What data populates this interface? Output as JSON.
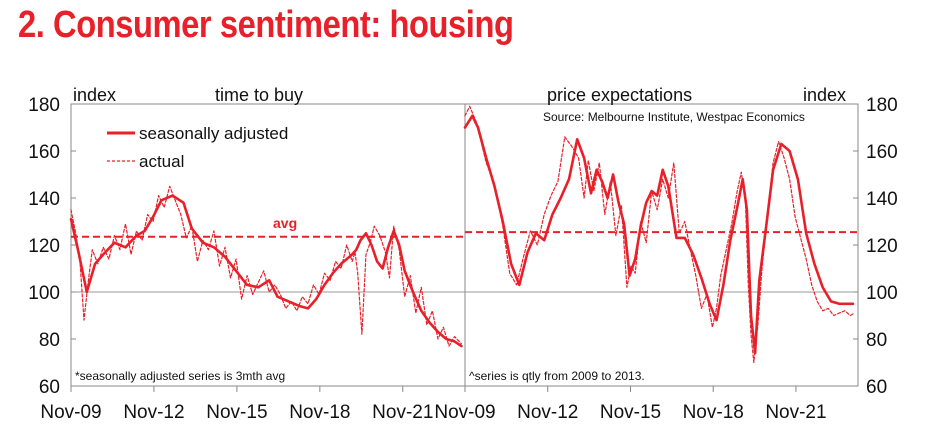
{
  "title": "2. Consumer sentiment: housing",
  "colors": {
    "accent": "#e8202a",
    "axis": "#888888",
    "text": "#111111"
  },
  "chart_data": [
    {
      "type": "line",
      "title": "time to buy",
      "ylabel": "index",
      "ylim": [
        60,
        180
      ],
      "yticks": [
        60,
        80,
        100,
        120,
        140,
        160,
        180
      ],
      "xlim": [
        2009.83,
        2024.08
      ],
      "xticks": [
        2009.83,
        2012.83,
        2015.83,
        2018.83,
        2021.83
      ],
      "xtick_labels": [
        "Nov-09",
        "Nov-12",
        "Nov-15",
        "Nov-18",
        "Nov-21"
      ],
      "avg": 123.5,
      "avg_label": "avg",
      "footnote": "*seasonally adjusted series is 3mth avg",
      "legend": {
        "position": "top-left",
        "entries": [
          "seasonally adjusted",
          "actual"
        ]
      },
      "series": [
        {
          "name": "seasonally adjusted",
          "style": "solid",
          "x": [
            2009.83,
            2010.1,
            2010.4,
            2010.7,
            2011.0,
            2011.4,
            2011.8,
            2012.2,
            2012.5,
            2012.8,
            2013.1,
            2013.5,
            2013.9,
            2014.2,
            2014.6,
            2015.0,
            2015.4,
            2015.8,
            2016.2,
            2016.6,
            2017.0,
            2017.3,
            2017.7,
            2018.1,
            2018.4,
            2018.7,
            2019.0,
            2019.3,
            2019.6,
            2019.8,
            2020.0,
            2020.15,
            2020.3,
            2020.5,
            2020.7,
            2020.9,
            2021.1,
            2021.3,
            2021.5,
            2021.7,
            2021.9,
            2022.2,
            2022.5,
            2022.8,
            2023.1,
            2023.4,
            2023.7,
            2023.95
          ],
          "values": [
            131,
            117,
            100,
            112,
            116,
            121,
            119,
            124,
            126,
            132,
            139,
            141,
            138,
            127,
            121,
            119,
            115,
            109,
            103,
            102,
            105,
            98,
            96,
            94,
            93,
            97,
            103,
            108,
            112,
            114,
            116,
            118,
            122,
            125,
            120,
            113,
            110,
            119,
            126,
            120,
            109,
            100,
            92,
            87,
            83,
            80,
            79,
            77
          ]
        },
        {
          "name": "actual",
          "style": "dashed",
          "x": [
            2009.83,
            2010.0,
            2010.15,
            2010.3,
            2010.45,
            2010.6,
            2010.8,
            2011.0,
            2011.2,
            2011.4,
            2011.6,
            2011.8,
            2012.0,
            2012.2,
            2012.4,
            2012.6,
            2012.8,
            2013.0,
            2013.2,
            2013.4,
            2013.6,
            2013.8,
            2014.0,
            2014.2,
            2014.4,
            2014.6,
            2014.8,
            2015.0,
            2015.2,
            2015.4,
            2015.6,
            2015.8,
            2016.0,
            2016.2,
            2016.4,
            2016.6,
            2016.8,
            2017.0,
            2017.2,
            2017.4,
            2017.6,
            2017.8,
            2018.0,
            2018.2,
            2018.4,
            2018.6,
            2018.8,
            2019.0,
            2019.2,
            2019.4,
            2019.6,
            2019.8,
            2020.0,
            2020.1,
            2020.2,
            2020.35,
            2020.5,
            2020.65,
            2020.8,
            2021.0,
            2021.2,
            2021.35,
            2021.5,
            2021.7,
            2021.9,
            2022.1,
            2022.3,
            2022.5,
            2022.7,
            2022.9,
            2023.1,
            2023.3,
            2023.5,
            2023.7,
            2023.95
          ],
          "values": [
            135,
            125,
            114,
            88,
            104,
            118,
            112,
            119,
            114,
            124,
            118,
            129,
            116,
            126,
            122,
            133,
            130,
            141,
            136,
            145,
            139,
            133,
            123,
            128,
            113,
            122,
            118,
            126,
            111,
            119,
            106,
            114,
            97,
            107,
            99,
            104,
            109,
            100,
            103,
            99,
            93,
            96,
            92,
            98,
            95,
            103,
            99,
            108,
            105,
            113,
            110,
            120,
            113,
            117,
            108,
            82,
            116,
            121,
            128,
            124,
            117,
            106,
            128,
            118,
            98,
            107,
            91,
            102,
            86,
            92,
            80,
            85,
            77,
            81,
            78
          ]
        }
      ]
    },
    {
      "type": "line",
      "title": "price expectations",
      "ylabel": "index",
      "ylim": [
        60,
        180
      ],
      "yticks": [
        60,
        80,
        100,
        120,
        140,
        160,
        180
      ],
      "xlim": [
        2009.83,
        2024.08
      ],
      "xticks": [
        2009.83,
        2012.83,
        2015.83,
        2018.83,
        2021.83
      ],
      "xtick_labels": [
        "Nov-09",
        "Nov-12",
        "Nov-15",
        "Nov-18",
        "Nov-21"
      ],
      "avg": 125.5,
      "source": "Source: Melbourne Institute, Westpac Economics",
      "footnote": "^series is qtly from 2009 to 2013.",
      "series": [
        {
          "name": "seasonally adjusted",
          "style": "solid",
          "x": [
            2009.83,
            2010.1,
            2010.3,
            2010.6,
            2010.9,
            2011.2,
            2011.5,
            2011.8,
            2012.1,
            2012.4,
            2012.7,
            2013.0,
            2013.3,
            2013.6,
            2013.9,
            2014.15,
            2014.4,
            2014.6,
            2014.8,
            2015.0,
            2015.2,
            2015.4,
            2015.6,
            2015.8,
            2016.0,
            2016.2,
            2016.4,
            2016.6,
            2016.8,
            2017.0,
            2017.2,
            2017.5,
            2017.8,
            2018.1,
            2018.4,
            2018.7,
            2018.95,
            2019.2,
            2019.45,
            2019.7,
            2019.9,
            2020.05,
            2020.2,
            2020.35,
            2020.5,
            2020.75,
            2021.0,
            2021.3,
            2021.6,
            2021.9,
            2022.2,
            2022.5,
            2022.8,
            2023.1,
            2023.4,
            2023.7,
            2023.9
          ],
          "values": [
            170,
            175,
            170,
            157,
            145,
            130,
            112,
            103,
            117,
            125,
            122,
            133,
            140,
            148,
            165,
            157,
            142,
            152,
            147,
            140,
            150,
            138,
            129,
            107,
            114,
            128,
            138,
            143,
            141,
            152,
            145,
            123,
            123,
            116,
            106,
            95,
            88,
            103,
            122,
            136,
            148,
            135,
            90,
            74,
            105,
            128,
            152,
            163,
            160,
            148,
            125,
            112,
            102,
            96,
            95,
            95,
            95
          ]
        },
        {
          "name": "actual",
          "style": "dashed",
          "x": [
            2009.83,
            2010.0,
            2010.25,
            2010.6,
            2010.9,
            2011.2,
            2011.45,
            2011.7,
            2011.95,
            2012.2,
            2012.45,
            2012.7,
            2012.95,
            2013.2,
            2013.45,
            2013.7,
            2013.95,
            2014.15,
            2014.3,
            2014.5,
            2014.7,
            2014.9,
            2015.1,
            2015.3,
            2015.5,
            2015.7,
            2015.85,
            2016.0,
            2016.2,
            2016.4,
            2016.6,
            2016.8,
            2017.0,
            2017.2,
            2017.4,
            2017.6,
            2017.8,
            2018.0,
            2018.2,
            2018.4,
            2018.6,
            2018.8,
            2018.95,
            2019.1,
            2019.3,
            2019.5,
            2019.7,
            2019.85,
            2020.0,
            2020.1,
            2020.2,
            2020.3,
            2020.45,
            2020.6,
            2020.8,
            2021.0,
            2021.2,
            2021.4,
            2021.6,
            2021.8,
            2022.0,
            2022.2,
            2022.4,
            2022.6,
            2022.8,
            2023.0,
            2023.2,
            2023.4,
            2023.6,
            2023.8,
            2023.95
          ],
          "values": [
            175,
            179,
            172,
            155,
            146,
            128,
            108,
            103,
            115,
            126,
            120,
            133,
            141,
            147,
            166,
            162,
            157,
            140,
            156,
            143,
            155,
            133,
            147,
            124,
            137,
            102,
            111,
            108,
            130,
            121,
            143,
            135,
            148,
            140,
            155,
            125,
            130,
            118,
            107,
            93,
            99,
            85,
            93,
            107,
            118,
            129,
            143,
            151,
            138,
            104,
            82,
            70,
            86,
            110,
            133,
            155,
            164,
            157,
            148,
            132,
            123,
            114,
            103,
            96,
            92,
            93,
            90,
            91,
            92,
            90,
            91
          ]
        }
      ]
    }
  ]
}
